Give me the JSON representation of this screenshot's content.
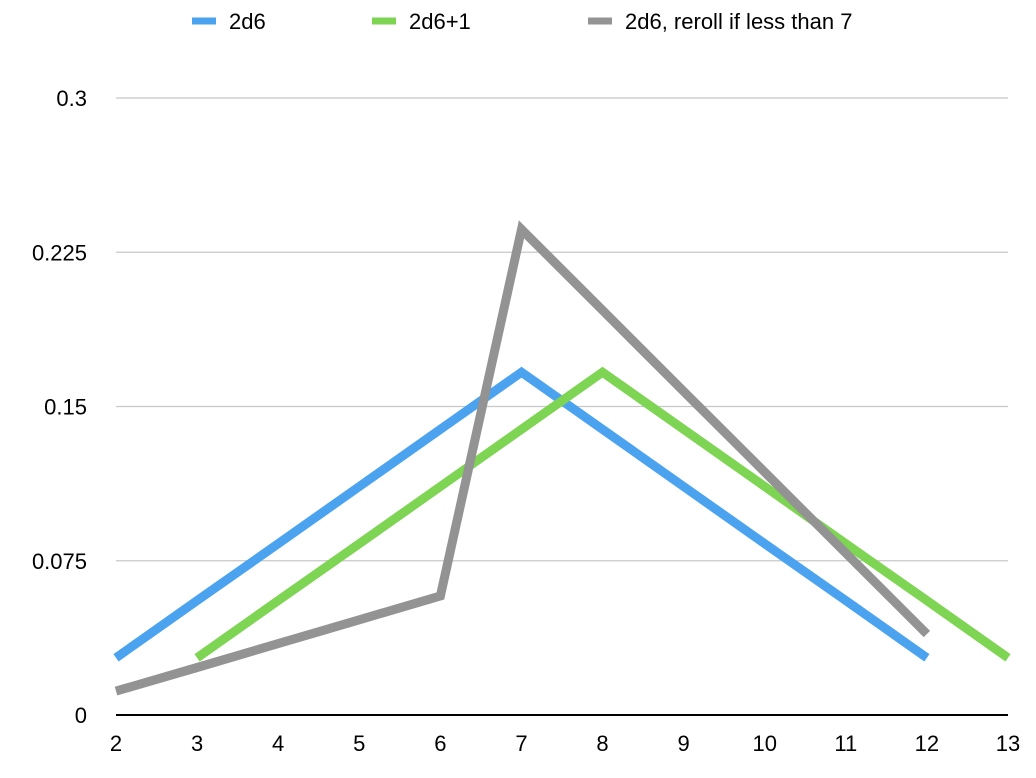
{
  "chart_data": {
    "type": "line",
    "title": "",
    "xlabel": "",
    "ylabel": "",
    "x_ticks": [
      2,
      3,
      4,
      5,
      6,
      7,
      8,
      9,
      10,
      11,
      12,
      13
    ],
    "xlim": [
      2,
      13
    ],
    "y_ticks": [
      "0",
      "0.075",
      "0.15",
      "0.225",
      "0.3"
    ],
    "ylim": [
      0,
      0.3
    ],
    "grid": "horizontal",
    "legend_position": "top",
    "series": [
      {
        "name": "2d6",
        "color": "#4ba3f0",
        "x": [
          2,
          3,
          4,
          5,
          6,
          7,
          8,
          9,
          10,
          11,
          12
        ],
        "y": [
          0.0278,
          0.0556,
          0.0833,
          0.1111,
          0.1389,
          0.1667,
          0.1389,
          0.1111,
          0.0833,
          0.0556,
          0.0278
        ]
      },
      {
        "name": "2d6+1",
        "color": "#7ed453",
        "x": [
          3,
          4,
          5,
          6,
          7,
          8,
          9,
          10,
          11,
          12,
          13
        ],
        "y": [
          0.0278,
          0.0556,
          0.0833,
          0.1111,
          0.1389,
          0.1667,
          0.1389,
          0.1111,
          0.0833,
          0.0556,
          0.0278
        ]
      },
      {
        "name": "2d6, reroll if less than 7",
        "color": "#939393",
        "x": [
          2,
          3,
          4,
          5,
          6,
          7,
          8,
          9,
          10,
          11,
          12
        ],
        "y": [
          0.0116,
          0.0231,
          0.0347,
          0.0463,
          0.0579,
          0.2361,
          0.1968,
          0.1574,
          0.1181,
          0.0787,
          0.0394
        ]
      }
    ]
  }
}
